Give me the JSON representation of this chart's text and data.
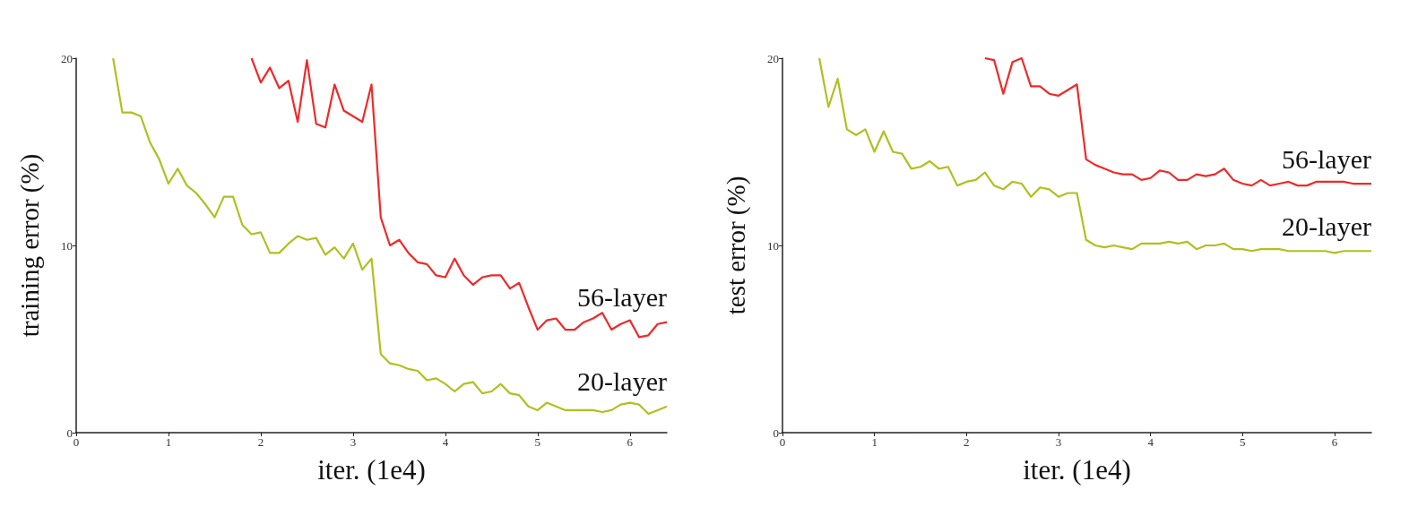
{
  "chart_data": [
    {
      "type": "line",
      "xlabel": "iter. (1e4)",
      "ylabel": "training error (%)",
      "xlim": [
        0,
        6.4
      ],
      "ylim": [
        0,
        20
      ],
      "xticks": [
        0,
        1,
        2,
        3,
        4,
        5,
        6
      ],
      "yticks": [
        0,
        10,
        20
      ],
      "grid": false,
      "x": [
        0.4,
        0.5,
        0.6,
        0.7,
        0.8,
        0.9,
        1.0,
        1.1,
        1.2,
        1.3,
        1.4,
        1.5,
        1.6,
        1.7,
        1.8,
        1.9,
        2.0,
        2.1,
        2.2,
        2.3,
        2.4,
        2.5,
        2.6,
        2.7,
        2.8,
        2.9,
        3.0,
        3.1,
        3.2,
        3.3,
        3.4,
        3.5,
        3.6,
        3.7,
        3.8,
        3.9,
        4.0,
        4.1,
        4.2,
        4.3,
        4.4,
        4.5,
        4.6,
        4.7,
        4.8,
        4.9,
        5.0,
        5.1,
        5.2,
        5.3,
        5.4,
        5.5,
        5.6,
        5.7,
        5.8,
        5.9,
        6.0,
        6.1,
        6.2,
        6.3,
        6.4
      ],
      "series": [
        {
          "name": "56-layer",
          "color": "#ee2a2a",
          "values": [
            null,
            null,
            null,
            null,
            null,
            null,
            null,
            null,
            null,
            null,
            null,
            null,
            null,
            null,
            null,
            20.0,
            18.7,
            19.5,
            18.4,
            18.8,
            16.6,
            19.9,
            16.5,
            16.3,
            18.6,
            17.2,
            16.9,
            16.6,
            18.6,
            11.5,
            10.0,
            10.3,
            9.6,
            9.1,
            9.0,
            8.4,
            8.3,
            9.3,
            8.4,
            7.9,
            8.3,
            8.4,
            8.4,
            7.7,
            8.0,
            6.7,
            5.5,
            6.0,
            6.1,
            5.5,
            5.5,
            5.9,
            6.1,
            6.4,
            5.5,
            5.8,
            6.0,
            5.1,
            5.2,
            5.8,
            5.9
          ]
        },
        {
          "name": "20-layer",
          "color": "#b0c020",
          "values": [
            20,
            17.1,
            17.1,
            16.9,
            15.5,
            14.6,
            13.3,
            14.1,
            13.2,
            12.8,
            12.2,
            11.5,
            12.6,
            12.6,
            11.1,
            10.6,
            10.7,
            9.6,
            9.6,
            10.1,
            10.5,
            10.3,
            10.4,
            9.5,
            9.9,
            9.3,
            10.1,
            8.7,
            9.3,
            4.2,
            3.7,
            3.6,
            3.4,
            3.3,
            2.8,
            2.9,
            2.6,
            2.2,
            2.6,
            2.7,
            2.1,
            2.2,
            2.6,
            2.1,
            2.0,
            1.4,
            1.2,
            1.6,
            1.4,
            1.2,
            1.2,
            1.2,
            1.2,
            1.1,
            1.2,
            1.5,
            1.6,
            1.5,
            1.0,
            1.2,
            1.4
          ]
        }
      ]
    },
    {
      "type": "line",
      "xlabel": "iter. (1e4)",
      "ylabel": "test error (%)",
      "xlim": [
        0,
        6.4
      ],
      "ylim": [
        0,
        20
      ],
      "xticks": [
        0,
        1,
        2,
        3,
        4,
        5,
        6
      ],
      "yticks": [
        0,
        10,
        20
      ],
      "grid": false,
      "x": [
        0.4,
        0.5,
        0.6,
        0.7,
        0.8,
        0.9,
        1.0,
        1.1,
        1.2,
        1.3,
        1.4,
        1.5,
        1.6,
        1.7,
        1.8,
        1.9,
        2.0,
        2.1,
        2.2,
        2.3,
        2.4,
        2.5,
        2.6,
        2.7,
        2.8,
        2.9,
        3.0,
        3.1,
        3.2,
        3.3,
        3.4,
        3.5,
        3.6,
        3.7,
        3.8,
        3.9,
        4.0,
        4.1,
        4.2,
        4.3,
        4.4,
        4.5,
        4.6,
        4.7,
        4.8,
        4.9,
        5.0,
        5.1,
        5.2,
        5.3,
        5.4,
        5.5,
        5.6,
        5.7,
        5.8,
        5.9,
        6.0,
        6.1,
        6.2,
        6.3,
        6.4
      ],
      "series": [
        {
          "name": "56-layer",
          "color": "#ee2a2a",
          "values": [
            null,
            null,
            null,
            null,
            null,
            null,
            null,
            null,
            null,
            null,
            null,
            null,
            null,
            null,
            null,
            null,
            null,
            null,
            20.0,
            19.9,
            18.1,
            19.8,
            20.0,
            18.5,
            18.5,
            18.1,
            18.0,
            18.3,
            18.6,
            14.6,
            14.3,
            14.1,
            13.9,
            13.8,
            13.8,
            13.5,
            13.6,
            14.0,
            13.9,
            13.5,
            13.5,
            13.8,
            13.7,
            13.8,
            14.1,
            13.5,
            13.3,
            13.2,
            13.5,
            13.2,
            13.3,
            13.4,
            13.2,
            13.2,
            13.4,
            13.4,
            13.4,
            13.4,
            13.3,
            13.3,
            13.3
          ]
        },
        {
          "name": "20-layer",
          "color": "#b0c020",
          "values": [
            20,
            17.4,
            18.9,
            16.2,
            15.9,
            16.2,
            15.0,
            16.1,
            15.0,
            14.9,
            14.1,
            14.2,
            14.5,
            14.1,
            14.2,
            13.2,
            13.4,
            13.5,
            13.9,
            13.2,
            13.0,
            13.4,
            13.3,
            12.6,
            13.1,
            13.0,
            12.6,
            12.8,
            12.8,
            10.3,
            10.0,
            9.9,
            10.0,
            9.9,
            9.8,
            10.1,
            10.1,
            10.1,
            10.2,
            10.1,
            10.2,
            9.8,
            10.0,
            10.0,
            10.1,
            9.8,
            9.8,
            9.7,
            9.8,
            9.8,
            9.8,
            9.7,
            9.7,
            9.7,
            9.7,
            9.7,
            9.6,
            9.7,
            9.7,
            9.7,
            9.7
          ]
        }
      ]
    }
  ]
}
